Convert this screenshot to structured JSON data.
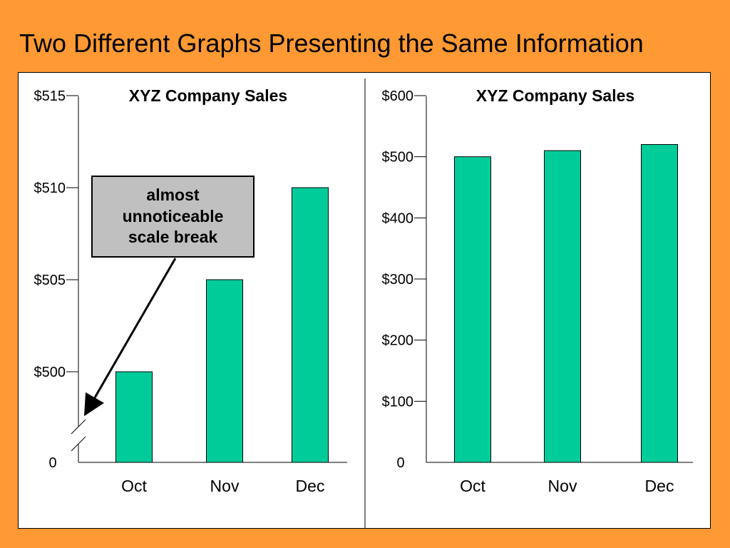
{
  "slide": {
    "title": "Two Different Graphs Presenting the Same Information"
  },
  "colors": {
    "background": "#FF9933",
    "bar": "#00CC99",
    "callout_fill": "#C0C0C0"
  },
  "callout": {
    "lines": [
      "almost",
      "unnoticeable",
      "scale break"
    ]
  },
  "chart_data": [
    {
      "type": "bar",
      "title": "XYZ Company Sales",
      "categories": [
        "Oct",
        "Nov",
        "Dec"
      ],
      "values": [
        500,
        505,
        510
      ],
      "ylim": [
        498,
        515
      ],
      "yticks": [
        {
          "value": 0,
          "label": "0"
        },
        {
          "value": 500,
          "label": "$500"
        },
        {
          "value": 505,
          "label": "$505"
        },
        {
          "value": 510,
          "label": "$510"
        },
        {
          "value": 515,
          "label": "$515"
        }
      ],
      "axis_break": true,
      "grid": false,
      "legend": "none"
    },
    {
      "type": "bar",
      "title": "XYZ Company Sales",
      "categories": [
        "Oct",
        "Nov",
        "Dec"
      ],
      "values": [
        500,
        510,
        520
      ],
      "ylim": [
        0,
        600
      ],
      "yticks": [
        {
          "value": 0,
          "label": "0"
        },
        {
          "value": 100,
          "label": "$100"
        },
        {
          "value": 200,
          "label": "$200"
        },
        {
          "value": 300,
          "label": "$300"
        },
        {
          "value": 400,
          "label": "$400"
        },
        {
          "value": 500,
          "label": "$500"
        },
        {
          "value": 600,
          "label": "$600"
        }
      ],
      "axis_break": false,
      "grid": false,
      "legend": "none"
    }
  ]
}
